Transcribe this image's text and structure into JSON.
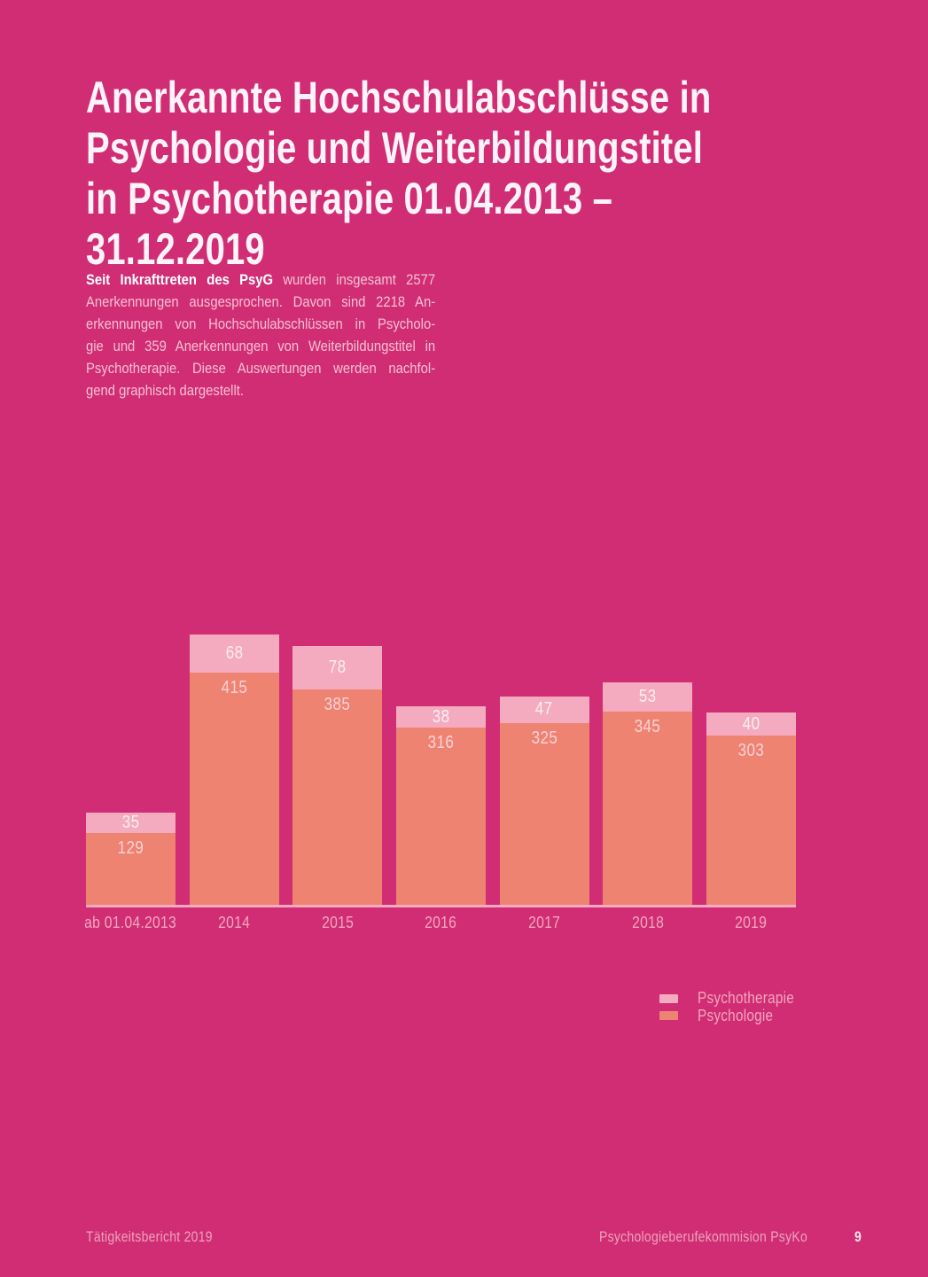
{
  "page": {
    "background": "#d02d74",
    "title": "Anerkannte Hochschulabschlüsse in\nPsychologie und Weiterbildungstitel\nin Psychotherapie 01.04.2013 – 31.12.2019",
    "intro": {
      "lines": [
        {
          "bold": "Seit Inkrafttreten des PsyG",
          "text": " wurden insgesamt 2577"
        },
        {
          "bold": "",
          "text": "Anerkennungen ausgesprochen. Davon sind 2218 An-"
        },
        {
          "bold": "",
          "text": "erkennungen von Hochschulabschlüssen in Psycholo-"
        },
        {
          "bold": "",
          "text": "gie und 359 Anerkennungen von Weiterbildungstitel in"
        },
        {
          "bold": "",
          "text": "Psychotherapie. Diese Auswertungen werden nachfol-"
        },
        {
          "bold": "",
          "text": "gend graphisch dargestellt."
        }
      ]
    }
  },
  "chart_data": {
    "type": "bar",
    "stacked": true,
    "categories": [
      "ab 01.04.2013",
      "2014",
      "2015",
      "2016",
      "2017",
      "2018",
      "2019"
    ],
    "series": [
      {
        "name": "Psychotherapie",
        "color": "#f4abbf",
        "values": [
          35,
          68,
          78,
          38,
          47,
          53,
          40
        ]
      },
      {
        "name": "Psychologie",
        "color": "#ef8372",
        "values": [
          129,
          415,
          385,
          316,
          325,
          345,
          303
        ]
      }
    ],
    "totals": [
      164,
      483,
      463,
      354,
      372,
      398,
      343
    ],
    "value_labels": "inside",
    "legend_position": "bottom-right",
    "axis_line_color": "#f4abbf",
    "grid": false
  },
  "footer": {
    "left": "Tätigkeitsbericht 2019",
    "right": "Psychologieberufekommision PsyKo",
    "page_number": "9"
  }
}
